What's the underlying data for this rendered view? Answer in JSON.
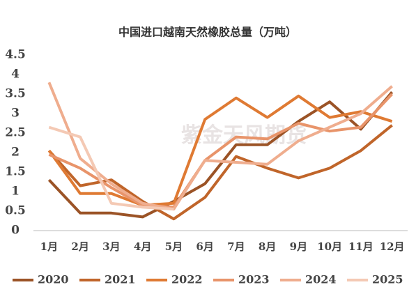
{
  "chart_data": {
    "type": "line",
    "title": "中国进口越南天然橡胶总量（万吨）",
    "watermark": "紫金天风期货",
    "categories": [
      "1月",
      "2月",
      "3月",
      "4月",
      "5月",
      "6月",
      "7月",
      "8月",
      "9月",
      "10月",
      "11月",
      "12月"
    ],
    "ylim": [
      0,
      4.5
    ],
    "yticks": [
      0,
      0.5,
      1,
      1.5,
      2,
      2.5,
      3,
      3.5,
      4,
      4.5
    ],
    "grid": false,
    "legend": "bottom",
    "series": [
      {
        "name": "2020",
        "color": "#9b5326",
        "values": [
          1.3,
          0.45,
          0.45,
          0.35,
          0.75,
          1.2,
          2.2,
          2.2,
          2.8,
          3.3,
          2.6,
          3.55
        ]
      },
      {
        "name": "2021",
        "color": "#c0652a",
        "values": [
          2.05,
          1.15,
          1.3,
          0.75,
          0.3,
          0.85,
          1.9,
          1.6,
          1.35,
          1.6,
          2.05,
          2.7
        ]
      },
      {
        "name": "2022",
        "color": "#df7a33",
        "values": [
          2.05,
          0.95,
          0.95,
          0.65,
          0.7,
          2.85,
          3.4,
          2.9,
          3.45,
          2.9,
          3.05,
          2.8
        ]
      },
      {
        "name": "2023",
        "color": "#e8946a",
        "values": [
          1.95,
          1.6,
          1.1,
          0.65,
          0.6,
          1.8,
          2.4,
          2.35,
          2.75,
          2.55,
          2.65,
          3.5
        ]
      },
      {
        "name": "2024",
        "color": "#efad8e",
        "values": [
          3.8,
          1.85,
          1.2,
          0.7,
          0.55,
          1.8,
          1.75,
          1.7,
          2.3,
          2.65,
          3.0,
          3.7
        ]
      },
      {
        "name": "2025",
        "color": "#f4c9b4",
        "values": [
          2.65,
          2.4,
          0.7,
          0.6,
          0.55,
          null,
          null,
          null,
          null,
          null,
          null,
          null
        ]
      }
    ]
  }
}
